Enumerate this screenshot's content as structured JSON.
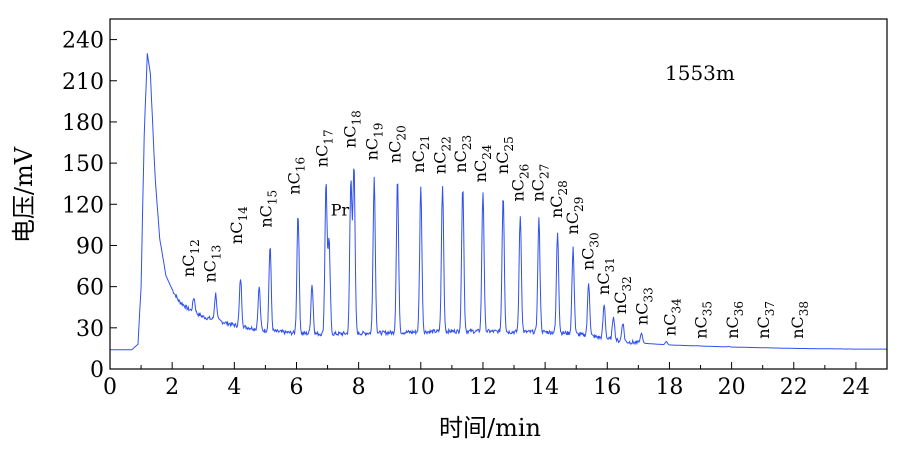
{
  "chart_data": {
    "type": "line",
    "title": "",
    "annotation": "1553m",
    "xlabel": "时间/min",
    "ylabel": "电压/mV",
    "xlim": [
      0,
      25
    ],
    "ylim": [
      0,
      255
    ],
    "x_ticks": [
      "0",
      "2",
      "4",
      "6",
      "8",
      "10",
      "12",
      "14",
      "16",
      "18",
      "20",
      "22",
      "24"
    ],
    "y_ticks": [
      "0",
      "30",
      "60",
      "90",
      "120",
      "150",
      "180",
      "210",
      "240"
    ],
    "line_color": "#3050f0",
    "grid": false,
    "series": [
      {
        "baseline": [
          [
            0,
            14
          ],
          [
            0.7,
            14
          ],
          [
            0.9,
            18
          ],
          [
            1.0,
            60
          ],
          [
            1.1,
            170
          ],
          [
            1.2,
            230
          ],
          [
            1.3,
            215
          ],
          [
            1.45,
            140
          ],
          [
            1.6,
            95
          ],
          [
            1.8,
            68
          ],
          [
            2.0,
            58
          ],
          [
            2.2,
            50
          ],
          [
            2.5,
            44
          ],
          [
            3.0,
            38
          ],
          [
            3.5,
            35
          ],
          [
            4.0,
            32
          ],
          [
            5.0,
            28
          ],
          [
            6.0,
            26
          ],
          [
            7.0,
            25.5
          ],
          [
            8.0,
            26
          ],
          [
            9.0,
            26.5
          ],
          [
            10.0,
            27
          ],
          [
            11.0,
            27.5
          ],
          [
            12.0,
            27.5
          ],
          [
            13.0,
            27
          ],
          [
            14.0,
            27
          ],
          [
            14.8,
            26
          ],
          [
            15.5,
            24
          ],
          [
            16.0,
            22
          ],
          [
            16.5,
            20
          ],
          [
            17.0,
            19
          ],
          [
            18.0,
            17.5
          ],
          [
            20.0,
            16
          ],
          [
            22.0,
            15
          ],
          [
            24.0,
            14.5
          ],
          [
            25.0,
            14.5
          ]
        ],
        "peaks": [
          [
            2.7,
            52
          ],
          [
            3.4,
            55
          ],
          [
            4.2,
            66
          ],
          [
            4.8,
            60
          ],
          [
            5.15,
            90
          ],
          [
            6.05,
            114
          ],
          [
            6.5,
            62
          ],
          [
            6.95,
            136
          ],
          [
            7.05,
            93
          ],
          [
            7.75,
            137
          ],
          [
            7.85,
            147
          ],
          [
            8.5,
            140
          ],
          [
            9.25,
            139
          ],
          [
            10.0,
            134
          ],
          [
            10.7,
            133
          ],
          [
            11.35,
            134
          ],
          [
            12.0,
            129
          ],
          [
            12.65,
            127
          ],
          [
            13.2,
            112
          ],
          [
            13.8,
            110
          ],
          [
            14.4,
            100
          ],
          [
            14.9,
            88
          ],
          [
            15.4,
            63
          ],
          [
            15.9,
            47
          ],
          [
            16.2,
            39
          ],
          [
            16.5,
            34
          ],
          [
            17.1,
            26
          ],
          [
            17.9,
            20
          ],
          [
            18.9,
            17
          ],
          [
            19.9,
            16.5
          ]
        ]
      }
    ],
    "peak_labels": [
      {
        "base": "nC",
        "sub": "12",
        "x": 2.7,
        "y": 67
      },
      {
        "base": "nC",
        "sub": "13",
        "x": 3.4,
        "y": 63
      },
      {
        "base": "nC",
        "sub": "14",
        "x": 4.25,
        "y": 91
      },
      {
        "base": "nC",
        "sub": "15",
        "x": 5.2,
        "y": 103
      },
      {
        "base": "nC",
        "sub": "16",
        "x": 6.1,
        "y": 127
      },
      {
        "base": "nC",
        "sub": "17",
        "x": 7.0,
        "y": 147
      },
      {
        "base": "nC",
        "sub": "18",
        "x": 7.9,
        "y": 161
      },
      {
        "base": "nC",
        "sub": "19",
        "x": 8.6,
        "y": 152
      },
      {
        "base": "nC",
        "sub": "20",
        "x": 9.35,
        "y": 150
      },
      {
        "base": "nC",
        "sub": "21",
        "x": 10.1,
        "y": 143
      },
      {
        "base": "nC",
        "sub": "22",
        "x": 10.8,
        "y": 142
      },
      {
        "base": "nC",
        "sub": "23",
        "x": 11.45,
        "y": 143
      },
      {
        "base": "nC",
        "sub": "24",
        "x": 12.1,
        "y": 136
      },
      {
        "base": "nC",
        "sub": "25",
        "x": 12.8,
        "y": 142
      },
      {
        "base": "nC",
        "sub": "26",
        "x": 13.3,
        "y": 122
      },
      {
        "base": "nC",
        "sub": "27",
        "x": 13.95,
        "y": 122
      },
      {
        "base": "nC",
        "sub": "28",
        "x": 14.55,
        "y": 110
      },
      {
        "base": "nC",
        "sub": "29",
        "x": 15.05,
        "y": 98
      },
      {
        "base": "nC",
        "sub": "30",
        "x": 15.55,
        "y": 72
      },
      {
        "base": "nC",
        "sub": "31",
        "x": 16.05,
        "y": 54
      },
      {
        "base": "nC",
        "sub": "32",
        "x": 16.6,
        "y": 40
      },
      {
        "base": "nC",
        "sub": "33",
        "x": 17.3,
        "y": 32
      },
      {
        "base": "nC",
        "sub": "34",
        "x": 18.2,
        "y": 24
      },
      {
        "base": "nC",
        "sub": "35",
        "x": 19.2,
        "y": 22
      },
      {
        "base": "nC",
        "sub": "36",
        "x": 20.2,
        "y": 22
      },
      {
        "base": "nC",
        "sub": "37",
        "x": 21.2,
        "y": 22
      },
      {
        "base": "nC",
        "sub": "38",
        "x": 22.3,
        "y": 22
      }
    ],
    "pr_label": {
      "text": "Pr",
      "x": 7.4,
      "y": 112
    }
  }
}
